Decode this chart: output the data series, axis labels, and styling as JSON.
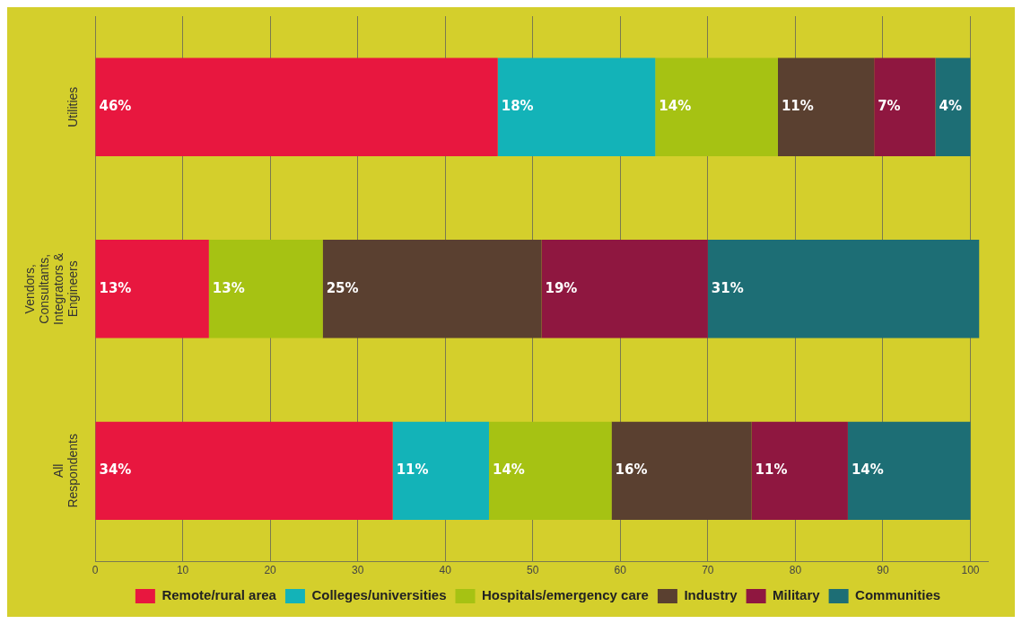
{
  "chart_data": {
    "type": "bar",
    "orientation": "horizontal",
    "stacked": true,
    "categories": [
      "Utilities",
      "Vendors, Consultants, Integrators & Engineers",
      "All Respondents"
    ],
    "series": [
      {
        "name": "Remote/rural area",
        "color": "#e8173f",
        "values": [
          46,
          13,
          34
        ],
        "value_labels": [
          "46%",
          "13%",
          "34%"
        ]
      },
      {
        "name": "Colleges/universities",
        "color": "#13b3b8",
        "values": [
          18,
          null,
          11
        ],
        "value_labels": [
          "18%",
          null,
          "11%"
        ]
      },
      {
        "name": "Hospitals/emergency care",
        "color": "#a6c213",
        "values": [
          14,
          13,
          14
        ],
        "value_labels": [
          "14%",
          "13%",
          "14%"
        ]
      },
      {
        "name": "Industry",
        "color": "#5a4030",
        "values": [
          11,
          25,
          16
        ],
        "value_labels": [
          "11%",
          "25%",
          "16%"
        ]
      },
      {
        "name": "Military",
        "color": "#8f1740",
        "values": [
          7,
          19,
          11
        ],
        "value_labels": [
          "7%",
          "19%",
          "11%"
        ]
      },
      {
        "name": "Communities",
        "color": "#1d6e75",
        "values": [
          4,
          31,
          14
        ],
        "value_labels": [
          "4%",
          "31%",
          "14%"
        ]
      }
    ],
    "xlim": [
      0,
      102
    ],
    "xticks": [
      0,
      10,
      20,
      30,
      40,
      50,
      60,
      70,
      80,
      90,
      100
    ],
    "grid": "x",
    "legend": "bottom"
  }
}
